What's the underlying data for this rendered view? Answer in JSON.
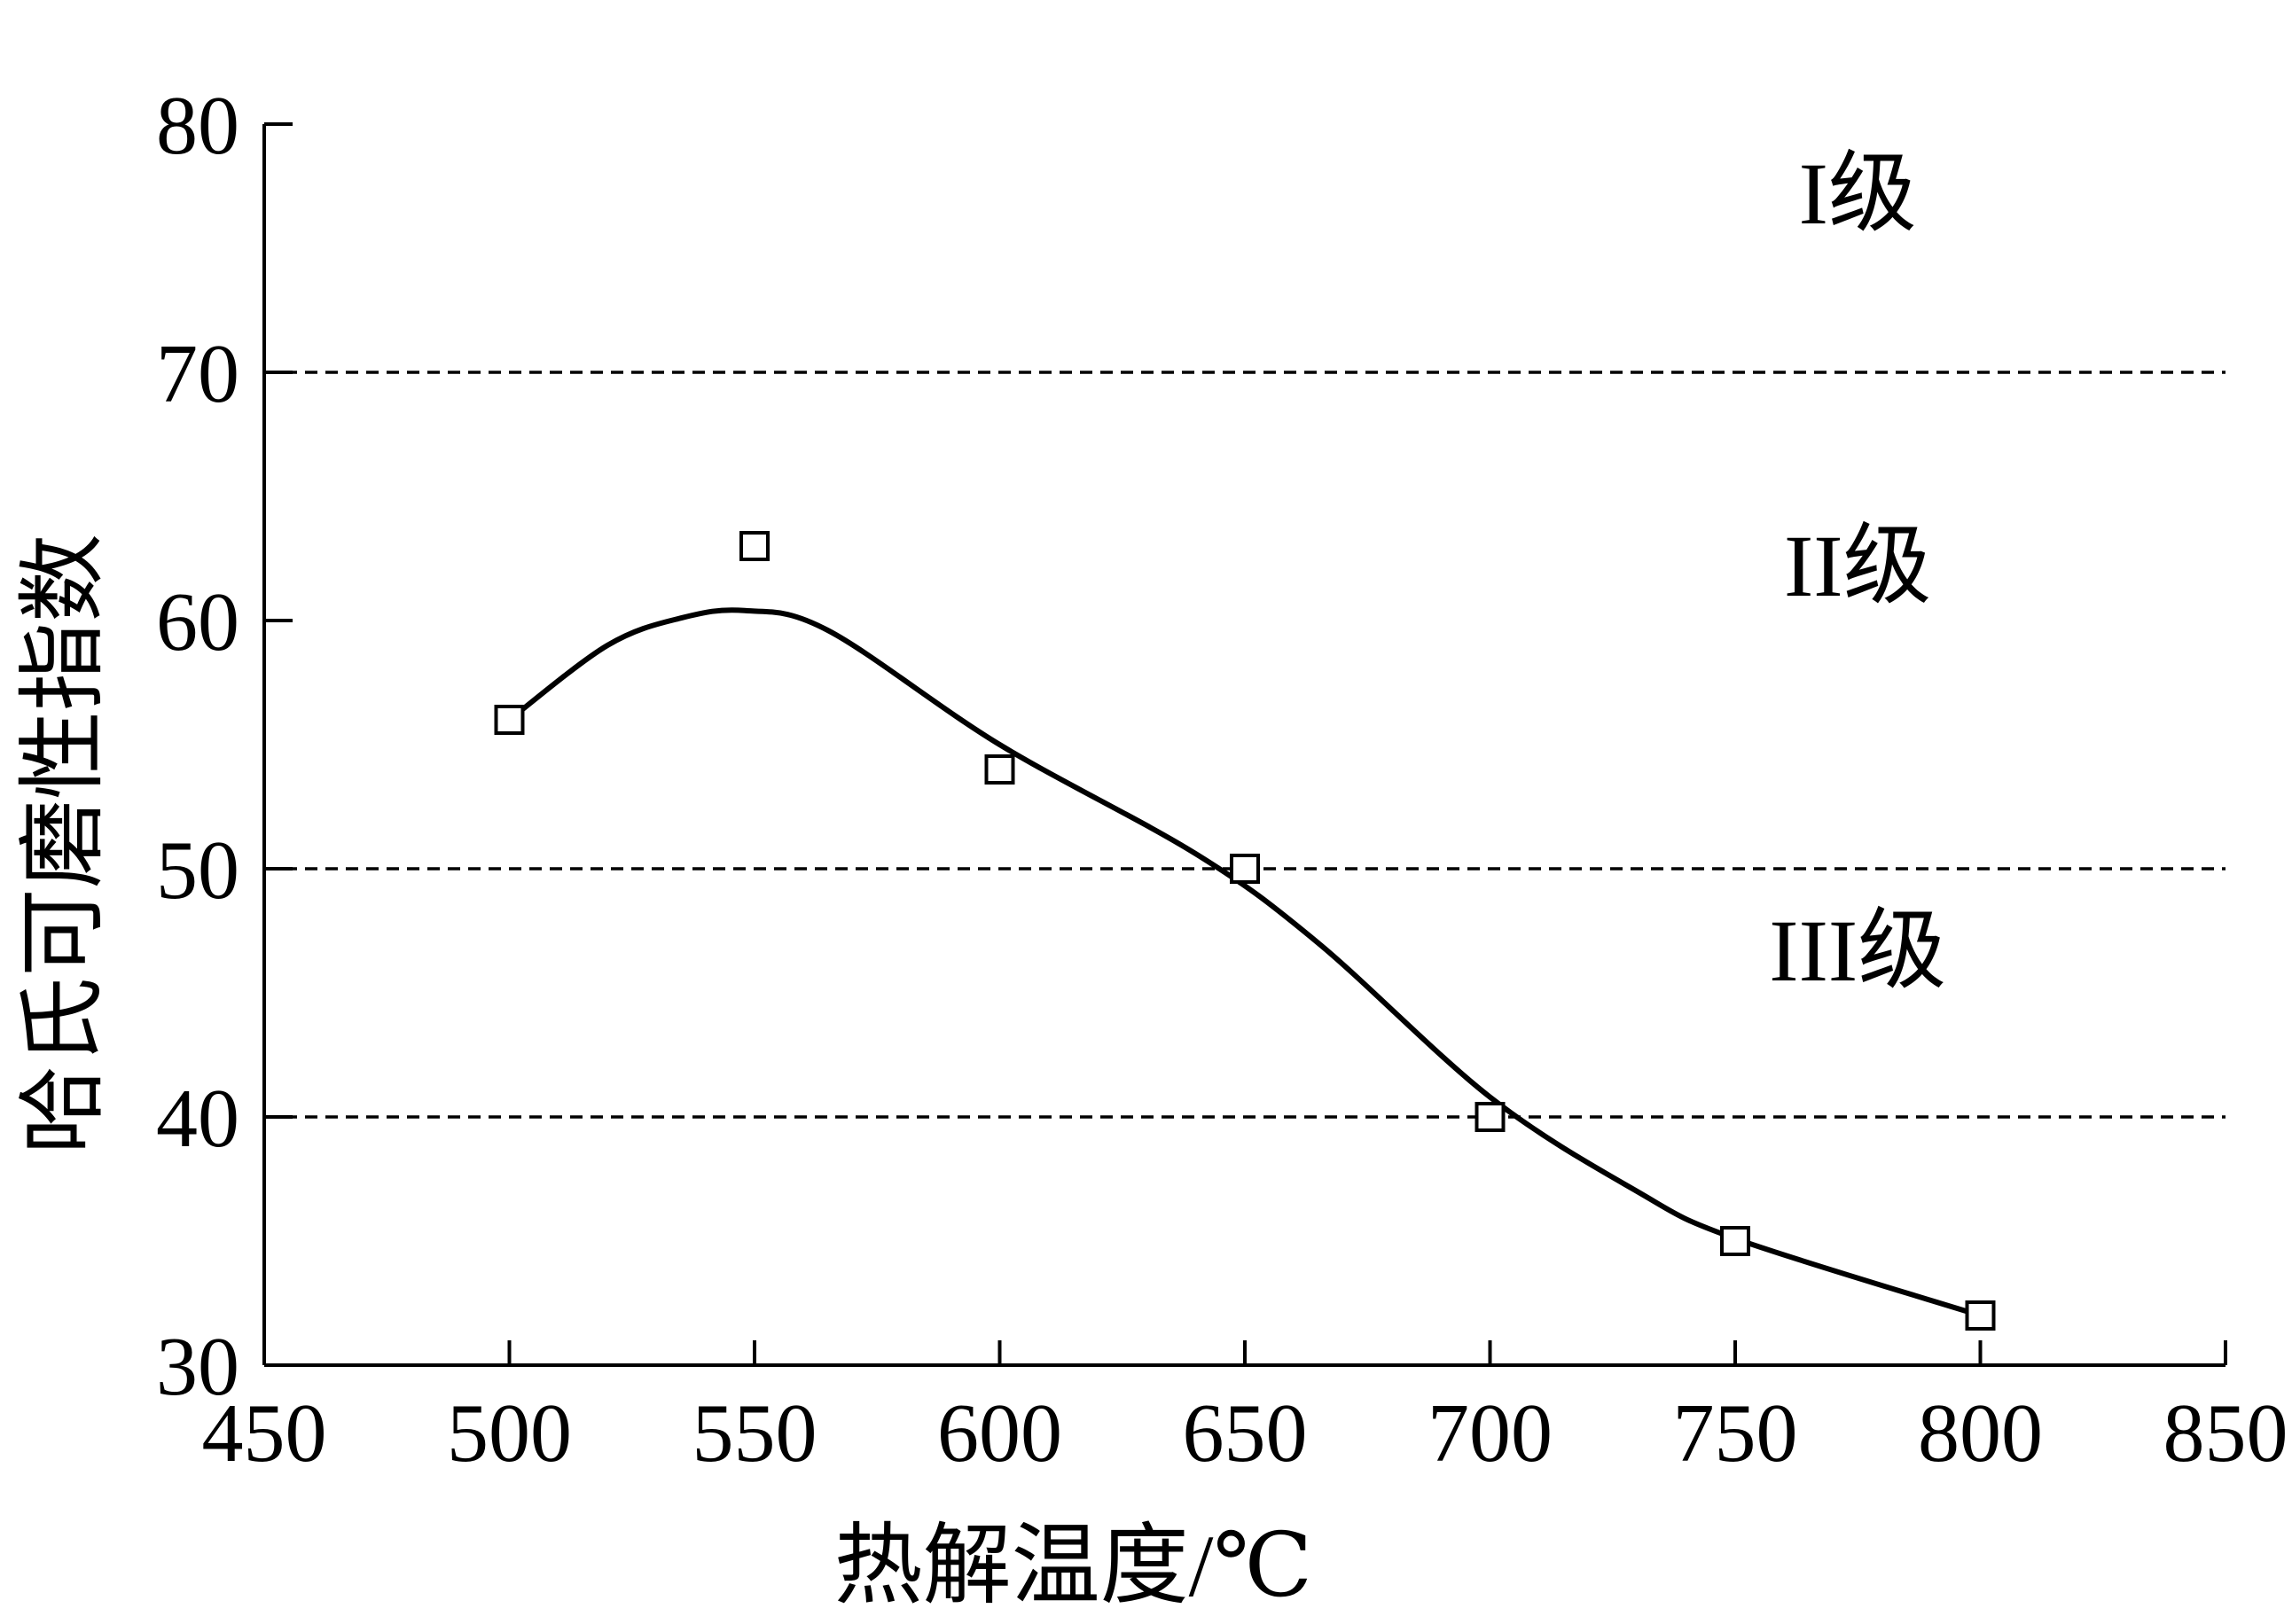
{
  "chart_data": {
    "type": "scatter",
    "xlabel": "热解温度/℃",
    "ylabel": "哈氏可磨性指数",
    "xlim": [
      450,
      850
    ],
    "ylim": [
      30,
      80
    ],
    "x_ticks": [
      450,
      500,
      550,
      600,
      650,
      700,
      750,
      800,
      850
    ],
    "y_ticks": [
      30,
      40,
      50,
      60,
      70,
      80
    ],
    "x_tick_labels": [
      "450",
      "500",
      "550",
      "600",
      "650",
      "700",
      "750",
      "800",
      "850"
    ],
    "y_tick_labels": [
      "30",
      "40",
      "50",
      "60",
      "70",
      "80"
    ],
    "grid": false,
    "series": [
      {
        "marker": "open-square",
        "x": [
          500,
          550,
          600,
          650,
          700,
          750,
          800
        ],
        "y": [
          56,
          63,
          54,
          50,
          40,
          35,
          32
        ]
      }
    ],
    "fit_curve": {
      "style": "smooth-solid",
      "x": [
        500,
        520,
        535,
        548,
        565,
        600,
        640,
        665,
        700,
        730,
        750,
        800
      ],
      "y": [
        56,
        59,
        60.1,
        60.4,
        59.6,
        55,
        50.6,
        47,
        40.8,
        37,
        35.1,
        32
      ]
    },
    "reference_lines": [
      {
        "y": 70,
        "style": "dashed"
      },
      {
        "y": 50,
        "style": "dashed"
      },
      {
        "y": 40,
        "style": "dashed"
      }
    ],
    "zone_labels": [
      {
        "text": "I级",
        "x": 775,
        "y": 76
      },
      {
        "text": "II级",
        "x": 775,
        "y": 61
      },
      {
        "text": "III级",
        "x": 775,
        "y": 45.5
      }
    ]
  }
}
